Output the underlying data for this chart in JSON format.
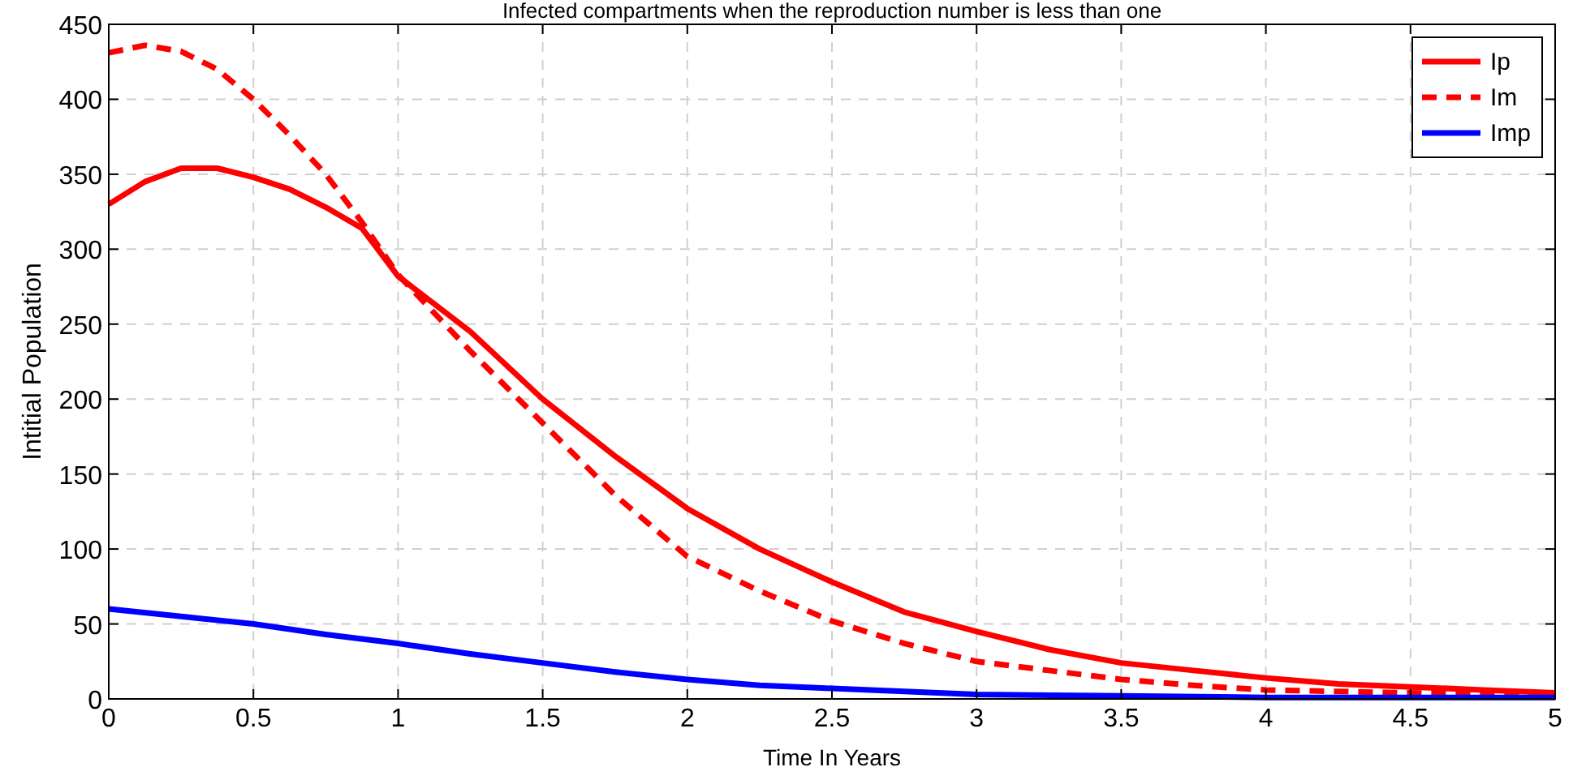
{
  "chart_data": {
    "type": "line",
    "title": "Infected compartments when the reproduction number is less than one",
    "xlabel": "Time In Years",
    "ylabel": "Intitial Population",
    "xlim": [
      0,
      5
    ],
    "xticks": [
      0,
      0.5,
      1,
      1.5,
      2,
      2.5,
      3,
      3.5,
      4,
      4.5,
      5
    ],
    "ylim": [
      0,
      450
    ],
    "yticks": [
      0,
      50,
      100,
      150,
      200,
      250,
      300,
      350,
      400,
      450
    ],
    "grid": true,
    "legend": "top right",
    "series": [
      {
        "name": "Ip",
        "color": "#ff0000",
        "line_style": "solid",
        "x": [
          0,
          0.125,
          0.25,
          0.375,
          0.5,
          0.625,
          0.75,
          0.875,
          1,
          1.25,
          1.5,
          1.75,
          2,
          2.25,
          2.5,
          2.75,
          3,
          3.25,
          3.5,
          3.75,
          4,
          4.25,
          4.5,
          4.75,
          5
        ],
        "values": [
          330,
          345,
          354,
          354,
          348,
          340,
          328,
          314,
          282,
          245,
          200,
          162,
          127,
          100,
          78,
          58,
          45,
          33,
          24,
          19,
          14,
          10,
          8,
          6,
          4
        ]
      },
      {
        "name": "Im",
        "color": "#ff0000",
        "line_style": "dashed",
        "x": [
          0,
          0.125,
          0.25,
          0.375,
          0.5,
          0.625,
          0.75,
          0.875,
          1,
          1.25,
          1.5,
          1.75,
          2,
          2.25,
          2.5,
          2.75,
          3,
          3.25,
          3.5,
          3.75,
          4,
          4.5,
          5
        ],
        "values": [
          431,
          436,
          432,
          420,
          400,
          376,
          350,
          318,
          283,
          232,
          184,
          136,
          95,
          72,
          52,
          37,
          25,
          19,
          13,
          9,
          6,
          4,
          3
        ]
      },
      {
        "name": "Imp",
        "color": "#0000ff",
        "line_style": "solid",
        "x": [
          0,
          0.25,
          0.5,
          0.75,
          1,
          1.25,
          1.5,
          1.75,
          2,
          2.25,
          2.5,
          2.75,
          3,
          3.5,
          4,
          5
        ],
        "values": [
          60,
          55,
          50,
          43,
          37,
          30,
          24,
          18,
          13,
          9,
          7,
          5,
          3,
          2,
          1,
          1
        ]
      }
    ]
  }
}
